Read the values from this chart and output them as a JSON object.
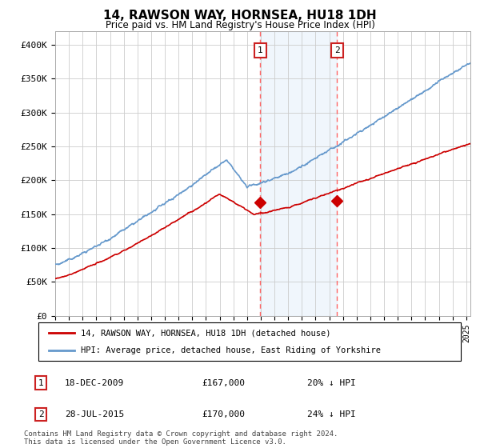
{
  "title": "14, RAWSON WAY, HORNSEA, HU18 1DH",
  "subtitle": "Price paid vs. HM Land Registry's House Price Index (HPI)",
  "ylim": [
    0,
    420000
  ],
  "yticks": [
    0,
    50000,
    100000,
    150000,
    200000,
    250000,
    300000,
    350000,
    400000
  ],
  "ytick_labels": [
    "£0",
    "£50K",
    "£100K",
    "£150K",
    "£200K",
    "£250K",
    "£300K",
    "£350K",
    "£400K"
  ],
  "hpi_color": "#6699cc",
  "price_color": "#cc0000",
  "shaded_color": "#ddeeff",
  "dashed_line_color": "#ff4444",
  "legend_entry1": "14, RAWSON WAY, HORNSEA, HU18 1DH (detached house)",
  "legend_entry2": "HPI: Average price, detached house, East Riding of Yorkshire",
  "transaction1_date": "18-DEC-2009",
  "transaction1_price": "£167,000",
  "transaction1_note": "20% ↓ HPI",
  "transaction2_date": "28-JUL-2015",
  "transaction2_price": "£170,000",
  "transaction2_note": "24% ↓ HPI",
  "footer": "Contains HM Land Registry data © Crown copyright and database right 2024.\nThis data is licensed under the Open Government Licence v3.0.",
  "vline1_x": 2009.96,
  "vline2_x": 2015.57,
  "marker1_y": 167000,
  "marker2_y": 170000,
  "xmin": 1995,
  "xmax": 2025.3
}
